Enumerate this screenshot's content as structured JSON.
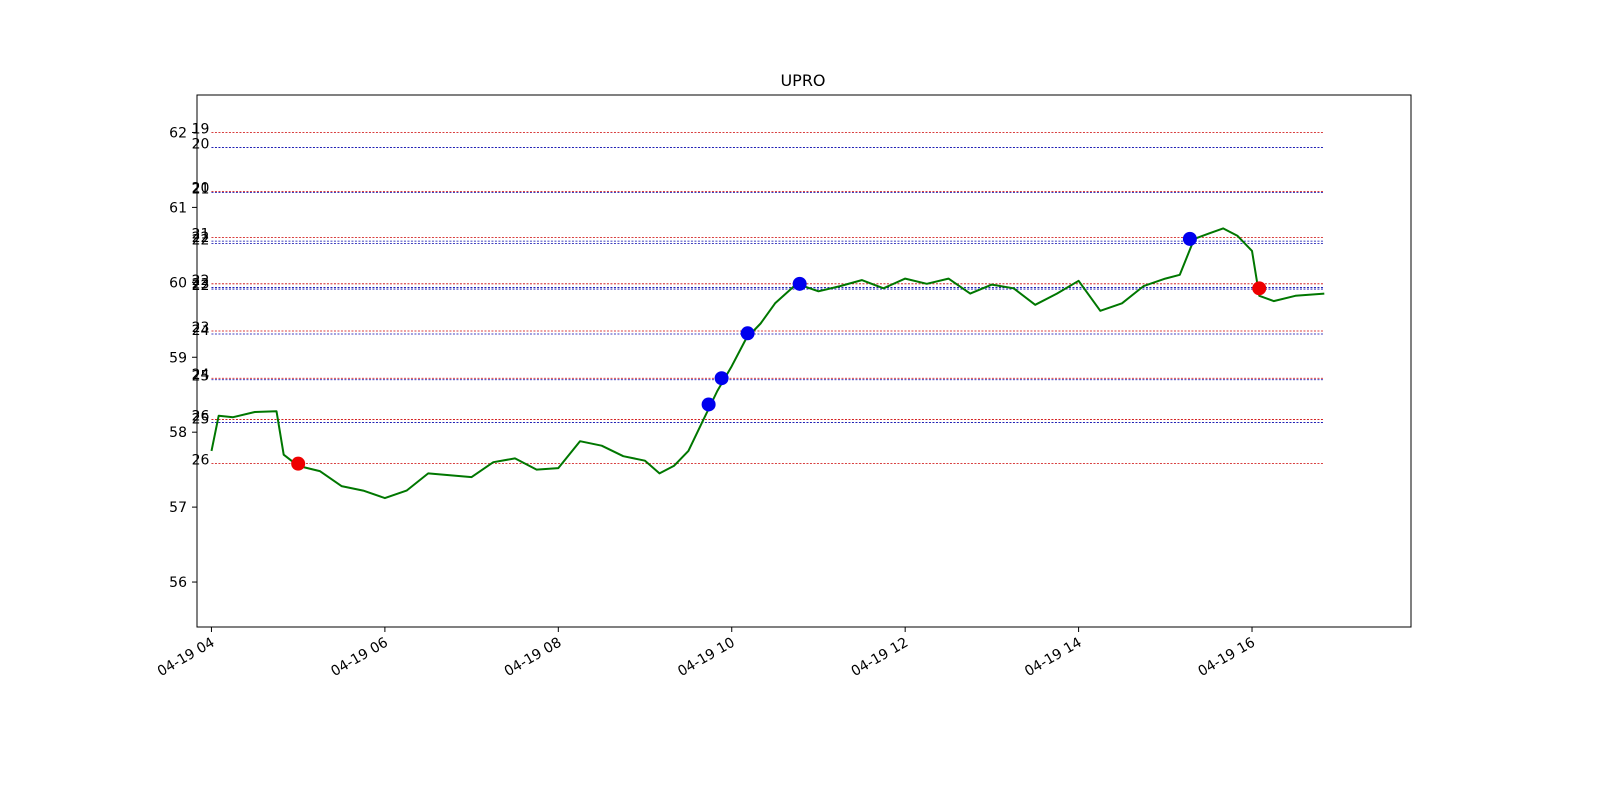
{
  "chart_data": {
    "type": "line",
    "title": "UPRO",
    "xlabel": "",
    "ylabel": "",
    "x_domain": [
      "04-19 03:50",
      "04-19 17:50"
    ],
    "ylim": [
      55.4,
      62.5
    ],
    "grid": false,
    "x_ticks": [
      {
        "t": "04-19 04:00",
        "label": "04-19 04"
      },
      {
        "t": "04-19 06:00",
        "label": "04-19 06"
      },
      {
        "t": "04-19 08:00",
        "label": "04-19 08"
      },
      {
        "t": "04-19 10:00",
        "label": "04-19 10"
      },
      {
        "t": "04-19 12:00",
        "label": "04-19 12"
      },
      {
        "t": "04-19 14:00",
        "label": "04-19 14"
      },
      {
        "t": "04-19 16:00",
        "label": "04-19 16"
      }
    ],
    "y_ticks": [
      56,
      57,
      58,
      59,
      60,
      61,
      62
    ],
    "colors": {
      "price": "#007700",
      "buy": "#0000ee",
      "sell": "#ee0000",
      "level_red": "#cc0000",
      "level_blue": "#0000aa"
    },
    "levels_start": "04-19 04:00",
    "levels_end": "04-19 16:50",
    "levels": [
      {
        "label": "19",
        "price": 62.0,
        "color": "red"
      },
      {
        "label": "20",
        "price": 61.8,
        "color": "blue"
      },
      {
        "label": "20",
        "price": 61.21,
        "color": "red"
      },
      {
        "label": "21",
        "price": 61.2,
        "color": "blue"
      },
      {
        "label": "21",
        "price": 60.6,
        "color": "red"
      },
      {
        "label": "22",
        "price": 60.55,
        "color": "blue"
      },
      {
        "label": "22",
        "price": 60.52,
        "color": "blue"
      },
      {
        "label": "22",
        "price": 59.98,
        "color": "red"
      },
      {
        "label": "23",
        "price": 59.93,
        "color": "blue"
      },
      {
        "label": "22",
        "price": 59.91,
        "color": "blue"
      },
      {
        "label": "23",
        "price": 59.35,
        "color": "red"
      },
      {
        "label": "24",
        "price": 59.31,
        "color": "blue"
      },
      {
        "label": "24",
        "price": 58.72,
        "color": "red"
      },
      {
        "label": "25",
        "price": 58.7,
        "color": "blue"
      },
      {
        "label": "26",
        "price": 58.17,
        "color": "red"
      },
      {
        "label": "25",
        "price": 58.13,
        "color": "blue"
      },
      {
        "label": "26",
        "price": 57.58,
        "color": "red"
      }
    ],
    "series": [
      {
        "x": [
          "04-19 04:00",
          "04-19 04:05",
          "04-19 04:15",
          "04-19 04:30",
          "04-19 04:45",
          "04-19 04:50",
          "04-19 05:00",
          "04-19 05:15",
          "04-19 05:30",
          "04-19 05:45",
          "04-19 06:00",
          "04-19 06:15",
          "04-19 06:30",
          "04-19 07:00",
          "04-19 07:15",
          "04-19 07:30",
          "04-19 07:45",
          "04-19 08:00",
          "04-19 08:15",
          "04-19 08:30",
          "04-19 08:45",
          "04-19 09:00",
          "04-19 09:10",
          "04-19 09:20",
          "04-19 09:30",
          "04-19 09:40",
          "04-19 09:50",
          "04-19 10:00",
          "04-19 10:10",
          "04-19 10:20",
          "04-19 10:30",
          "04-19 10:45",
          "04-19 11:00",
          "04-19 11:15",
          "04-19 11:30",
          "04-19 11:45",
          "04-19 12:00",
          "04-19 12:15",
          "04-19 12:30",
          "04-19 12:45",
          "04-19 13:00",
          "04-19 13:15",
          "04-19 13:30",
          "04-19 13:45",
          "04-19 14:00",
          "04-19 14:15",
          "04-19 14:30",
          "04-19 14:45",
          "04-19 15:00",
          "04-19 15:10",
          "04-19 15:20",
          "04-19 15:30",
          "04-19 15:40",
          "04-19 15:50",
          "04-19 16:00",
          "04-19 16:05",
          "04-19 16:15",
          "04-19 16:30",
          "04-19 16:50"
        ],
        "y": [
          57.75,
          58.22,
          58.2,
          58.27,
          58.28,
          57.7,
          57.55,
          57.48,
          57.28,
          57.22,
          57.12,
          57.22,
          57.45,
          57.4,
          57.6,
          57.65,
          57.5,
          57.52,
          57.88,
          57.82,
          57.68,
          57.62,
          57.45,
          57.55,
          57.75,
          58.15,
          58.55,
          58.88,
          59.25,
          59.45,
          59.72,
          59.98,
          59.88,
          59.95,
          60.03,
          59.92,
          60.05,
          59.98,
          60.05,
          59.85,
          59.97,
          59.92,
          59.7,
          59.85,
          60.02,
          59.62,
          59.72,
          59.95,
          60.05,
          60.1,
          60.58,
          60.65,
          60.72,
          60.62,
          60.42,
          59.82,
          59.75,
          59.82,
          59.85
        ]
      }
    ],
    "markers": [
      {
        "type": "sell",
        "x": "04-19 05:00",
        "y": 57.58
      },
      {
        "type": "buy",
        "x": "04-19 09:44",
        "y": 58.37
      },
      {
        "type": "buy",
        "x": "04-19 09:53",
        "y": 58.72
      },
      {
        "type": "buy",
        "x": "04-19 10:11",
        "y": 59.32
      },
      {
        "type": "buy",
        "x": "04-19 10:47",
        "y": 59.98
      },
      {
        "type": "buy",
        "x": "04-19 15:17",
        "y": 60.58
      },
      {
        "type": "sell",
        "x": "04-19 16:05",
        "y": 59.92
      }
    ]
  }
}
